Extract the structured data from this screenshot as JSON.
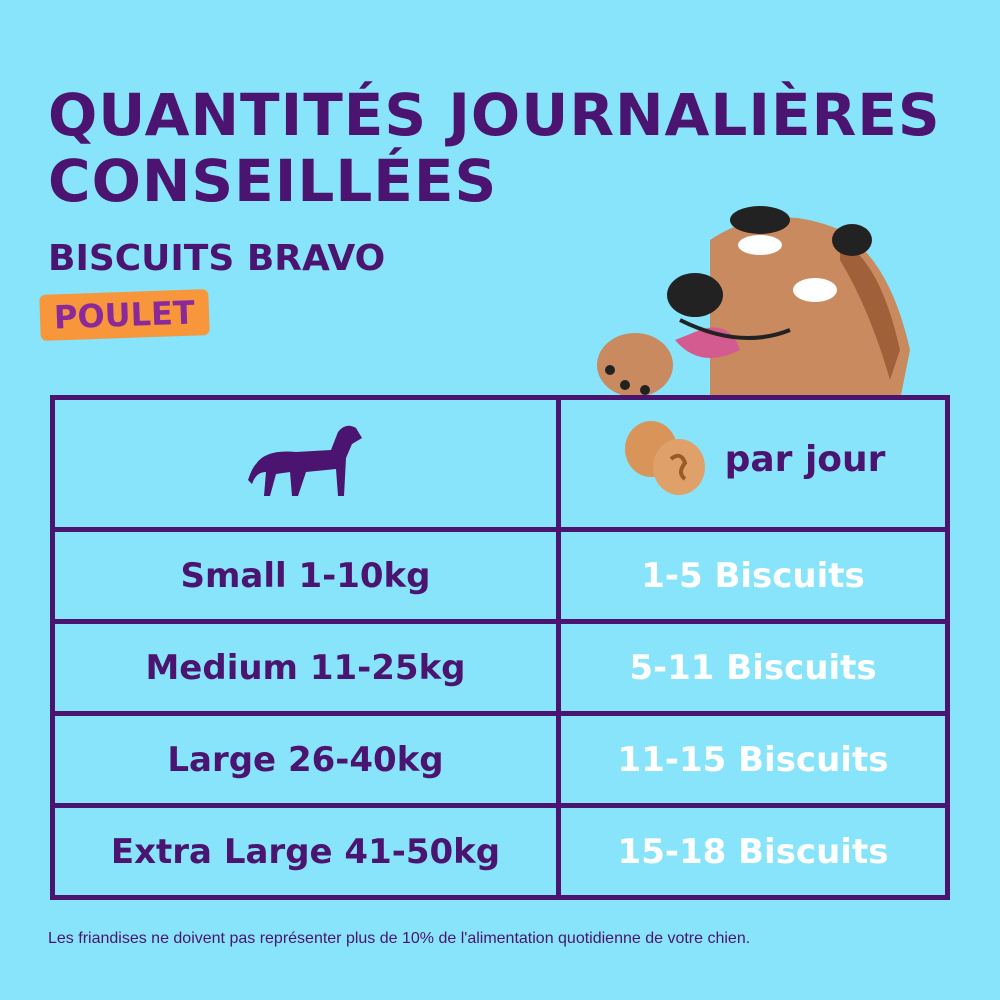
{
  "header": {
    "title_line1": "Quantités journalières",
    "title_line2": "conseillées",
    "subtitle": "BISCUITS BRAVO",
    "flavor_badge": "POULET"
  },
  "table": {
    "header_per_day": "par jour",
    "rows": [
      {
        "size": "Small 1-10kg",
        "amount": "1-5 Biscuits"
      },
      {
        "size": "Medium 11-25kg",
        "amount": "5-11 Biscuits"
      },
      {
        "size": "Large 26-40kg",
        "amount": "11-15 Biscuits"
      },
      {
        "size": "Extra Large 41-50kg",
        "amount": "15-18 Biscuits"
      }
    ]
  },
  "footer": "Les friandises ne doivent pas représenter plus de 10% de l'alimentation quotidienne de votre chien.",
  "colors": {
    "background": "#87e4fa",
    "primary": "#4a1470",
    "badge": "#f7963a",
    "badge_text": "#8a2a9a"
  }
}
